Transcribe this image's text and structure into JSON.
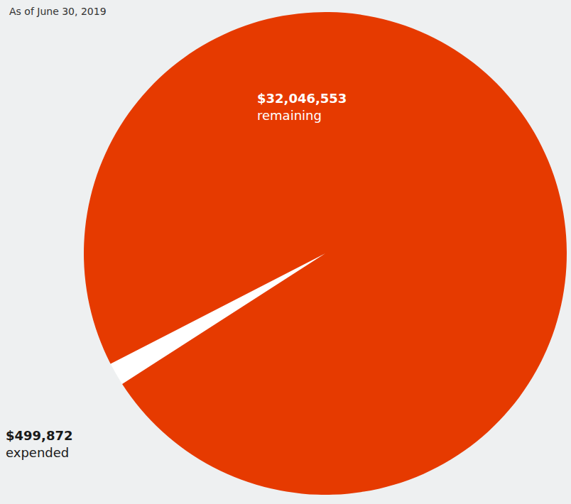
{
  "chart_data": {
    "type": "pie",
    "subtitle": "As of June 30, 2019",
    "categories": [
      "expended",
      "remaining"
    ],
    "values": [
      499872,
      32046553
    ],
    "value_labels": [
      "$499,872",
      "$32,046,553"
    ],
    "colors": [
      "#ffffff",
      "#e63a00"
    ],
    "data_labels": true
  }
}
